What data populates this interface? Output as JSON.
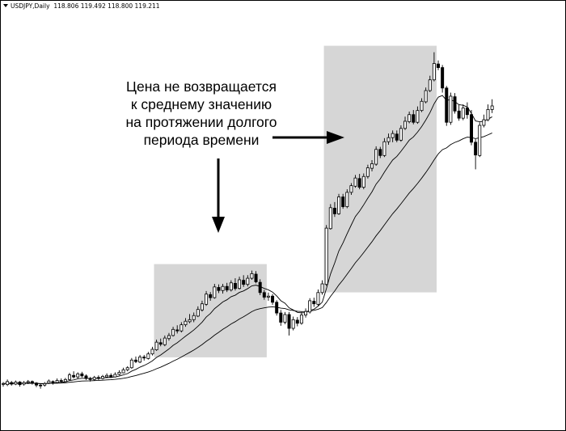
{
  "header": {
    "symbol": "USDJPY,Daily",
    "ohlc": "118.806 119.492 118.800 119.211"
  },
  "annotation": {
    "lines": [
      "Цена не возвращается",
      "к среднему значению",
      "на протяжении долгого",
      "периода времени"
    ]
  },
  "colors": {
    "highlight": "#d6d6d6",
    "candle": "#000000",
    "bull_fill": "#ffffff",
    "bear_fill": "#000000",
    "ma": "#000000",
    "arrow": "#000000"
  },
  "chart_data": {
    "type": "candlestick",
    "symbol": "USDJPY",
    "timeframe": "Daily",
    "last_bar": {
      "open": 118.806,
      "high": 119.492,
      "low": 118.8,
      "close": 119.211
    },
    "candles": [
      [
        0,
        0,
        0.3,
        -0.6
      ],
      [
        -0.2,
        0.4,
        0.8,
        -0.5
      ],
      [
        0.2,
        -0.1,
        0.5,
        -0.4
      ],
      [
        -0.1,
        0.3,
        0.6,
        -0.3
      ],
      [
        0.3,
        -0.2,
        0.5,
        -0.6
      ],
      [
        -0.1,
        0.2,
        0.5,
        -0.4
      ],
      [
        0.2,
        0.4,
        0.7,
        -0.1
      ],
      [
        0.4,
        0.1,
        0.6,
        -0.2
      ],
      [
        0.1,
        -0.3,
        0.3,
        -0.7
      ],
      [
        -0.3,
        -0.4,
        0,
        -1
      ],
      [
        -0.3,
        0,
        0.3,
        -0.6
      ],
      [
        0.1,
        0.5,
        0.8,
        -0.1
      ],
      [
        0.4,
        0.2,
        0.6,
        -0.2
      ],
      [
        0.2,
        0.6,
        1,
        0
      ],
      [
        0.6,
        0.5,
        1,
        0.1
      ],
      [
        0.4,
        0.8,
        1.1,
        0.3
      ],
      [
        0.8,
        1.7,
        2.1,
        0.6
      ],
      [
        1.6,
        1.3,
        2.4,
        1
      ],
      [
        1.3,
        1.9,
        2.2,
        1
      ],
      [
        1.9,
        1.5,
        2.3,
        1.2
      ],
      [
        1.5,
        1,
        1.8,
        0.7
      ],
      [
        1,
        0.8,
        1.3,
        0.4
      ],
      [
        0.8,
        1.2,
        1.5,
        0.6
      ],
      [
        1.2,
        1,
        1.6,
        0.7
      ],
      [
        1,
        1.4,
        1.7,
        0.8
      ],
      [
        1.3,
        1.6,
        2,
        1.1
      ],
      [
        1.6,
        1.3,
        2,
        1.1
      ],
      [
        1.3,
        1.8,
        2.2,
        1.2
      ],
      [
        1.8,
        2.2,
        2.6,
        1.6
      ],
      [
        2.1,
        2.7,
        3.1,
        2
      ],
      [
        2.7,
        3.1,
        3.4,
        2.4
      ],
      [
        3.1,
        4.6,
        5,
        2.9
      ],
      [
        4.6,
        4.3,
        5.3,
        4
      ],
      [
        4.2,
        5.2,
        5.6,
        4
      ],
      [
        5.2,
        5,
        5.6,
        4.5
      ],
      [
        4.9,
        5.8,
        6.2,
        4.7
      ],
      [
        5.8,
        6.7,
        7.2,
        5.5
      ],
      [
        6.6,
        8.1,
        8.6,
        6.4
      ],
      [
        8,
        7.7,
        8.8,
        7.3
      ],
      [
        7.6,
        8.9,
        9.4,
        7.3
      ],
      [
        8.8,
        9.4,
        9.9,
        8.4
      ],
      [
        9.4,
        10.6,
        11.1,
        9.2
      ],
      [
        10.5,
        10.3,
        11.4,
        9.8
      ],
      [
        10.3,
        11.5,
        12,
        10
      ],
      [
        11.5,
        12.2,
        12.8,
        11.1
      ],
      [
        12.1,
        12.5,
        13.6,
        11.8
      ],
      [
        12.5,
        13.3,
        13.9,
        12
      ],
      [
        13.2,
        14.5,
        15.1,
        13
      ],
      [
        14.4,
        15.6,
        16.2,
        14.1
      ],
      [
        15.5,
        17.5,
        18.1,
        15.2
      ],
      [
        17.4,
        16.8,
        17.9,
        16.2
      ],
      [
        16.8,
        18.9,
        19.5,
        16.6
      ],
      [
        18.8,
        18.2,
        19.4,
        17.7
      ],
      [
        18.2,
        19,
        19.5,
        17.6
      ],
      [
        19,
        18.3,
        19.7,
        17.9
      ],
      [
        18.3,
        19.7,
        20.2,
        18
      ],
      [
        19.6,
        18.6,
        20.6,
        18.2
      ],
      [
        18.6,
        20.3,
        20.9,
        18.4
      ],
      [
        20.2,
        19.4,
        21.2,
        18.9
      ],
      [
        19.4,
        20.6,
        21.2,
        19
      ],
      [
        20.6,
        21.5,
        22.1,
        20.3
      ],
      [
        21.4,
        19.9,
        22,
        19.6
      ],
      [
        19.8,
        17.8,
        20.4,
        17.3
      ],
      [
        17.8,
        16.9,
        18.3,
        16.4
      ],
      [
        16.9,
        17.1,
        17.8,
        16.2
      ],
      [
        17.1,
        15.9,
        17.5,
        15.4
      ],
      [
        15.9,
        13.8,
        16.3,
        13.3
      ],
      [
        13.8,
        12,
        14.4,
        11.3
      ],
      [
        12,
        13.5,
        14,
        11.6
      ],
      [
        13.5,
        10.8,
        14,
        9.4
      ],
      [
        10.8,
        12.5,
        13.1,
        10.4
      ],
      [
        12.4,
        11.8,
        13,
        11.2
      ],
      [
        11.8,
        13.4,
        14,
        11.5
      ],
      [
        13.4,
        14.1,
        14.7,
        12.9
      ],
      [
        14,
        16.2,
        16.7,
        13.7
      ],
      [
        16.1,
        15.6,
        16.8,
        15
      ],
      [
        15.5,
        17.8,
        18.4,
        15.2
      ],
      [
        17.8,
        19.5,
        20.2,
        17.4
      ],
      [
        19.4,
        30.4,
        31,
        19.1
      ],
      [
        30.3,
        34.4,
        35.1,
        30.1
      ],
      [
        34.3,
        33.2,
        35.5,
        32.6
      ],
      [
        33.2,
        36.5,
        37.1,
        33
      ],
      [
        36.5,
        34.6,
        37.1,
        34.2
      ],
      [
        34.6,
        37.4,
        38,
        34.3
      ],
      [
        37.4,
        38.7,
        39.2,
        36.9
      ],
      [
        38.6,
        40.2,
        40.8,
        38.3
      ],
      [
        40.1,
        38.4,
        41,
        38
      ],
      [
        38.4,
        40.5,
        41.1,
        38
      ],
      [
        40.5,
        42.2,
        42.8,
        40.1
      ],
      [
        42.1,
        43,
        43.7,
        41.5
      ],
      [
        42.9,
        45.8,
        46.4,
        42.6
      ],
      [
        45.8,
        44.6,
        46.3,
        44.1
      ],
      [
        44.6,
        47.3,
        48,
        44.3
      ],
      [
        47.3,
        48.1,
        48.9,
        46.7
      ],
      [
        48.1,
        48.9,
        49.5,
        47.2
      ],
      [
        48.8,
        47.6,
        49.5,
        47.2
      ],
      [
        47.6,
        49.9,
        50.5,
        47.3
      ],
      [
        49.9,
        51.3,
        52.2,
        49.6
      ],
      [
        51.2,
        52.6,
        53.2,
        50.9
      ],
      [
        52.6,
        51.1,
        53.5,
        50.7
      ],
      [
        51.1,
        53.4,
        54.2,
        50.8
      ],
      [
        53.4,
        55.2,
        55.8,
        53.1
      ],
      [
        55.1,
        57.3,
        57.9,
        54.8
      ],
      [
        57.3,
        59.4,
        60.2,
        57
      ],
      [
        59.4,
        62.6,
        64.8,
        59.1
      ],
      [
        62.5,
        61.8,
        63.2,
        61.3
      ],
      [
        61.8,
        57.8,
        62.3,
        56.9
      ],
      [
        57.8,
        51.1,
        58.2,
        50.4
      ],
      [
        51.1,
        56.2,
        56.9,
        50.6
      ],
      [
        56.1,
        53.3,
        56.8,
        52.8
      ],
      [
        53.3,
        51.9,
        54.6,
        51.4
      ],
      [
        51.9,
        53.9,
        54.6,
        51.5
      ],
      [
        53.9,
        52.6,
        55,
        51.8
      ],
      [
        52.6,
        47.2,
        53.5,
        46.6
      ],
      [
        47.2,
        44.7,
        47.8,
        41.9
      ],
      [
        44.6,
        50.5,
        51.1,
        44.3
      ],
      [
        50.5,
        51.6,
        52.6,
        50.1
      ],
      [
        51.6,
        53.6,
        54.6,
        51.3
      ],
      [
        53.6,
        54.3,
        55.6,
        52.9
      ]
    ],
    "ma_fast_period": 10,
    "ma_slow_period": 30,
    "highlight_regions": [
      {
        "start_index": 37,
        "end_index": 63
      },
      {
        "start_index": 78,
        "end_index": 104
      }
    ],
    "grid": false,
    "xlim": [
      0,
      121
    ],
    "ylim": [
      -2,
      66
    ]
  }
}
